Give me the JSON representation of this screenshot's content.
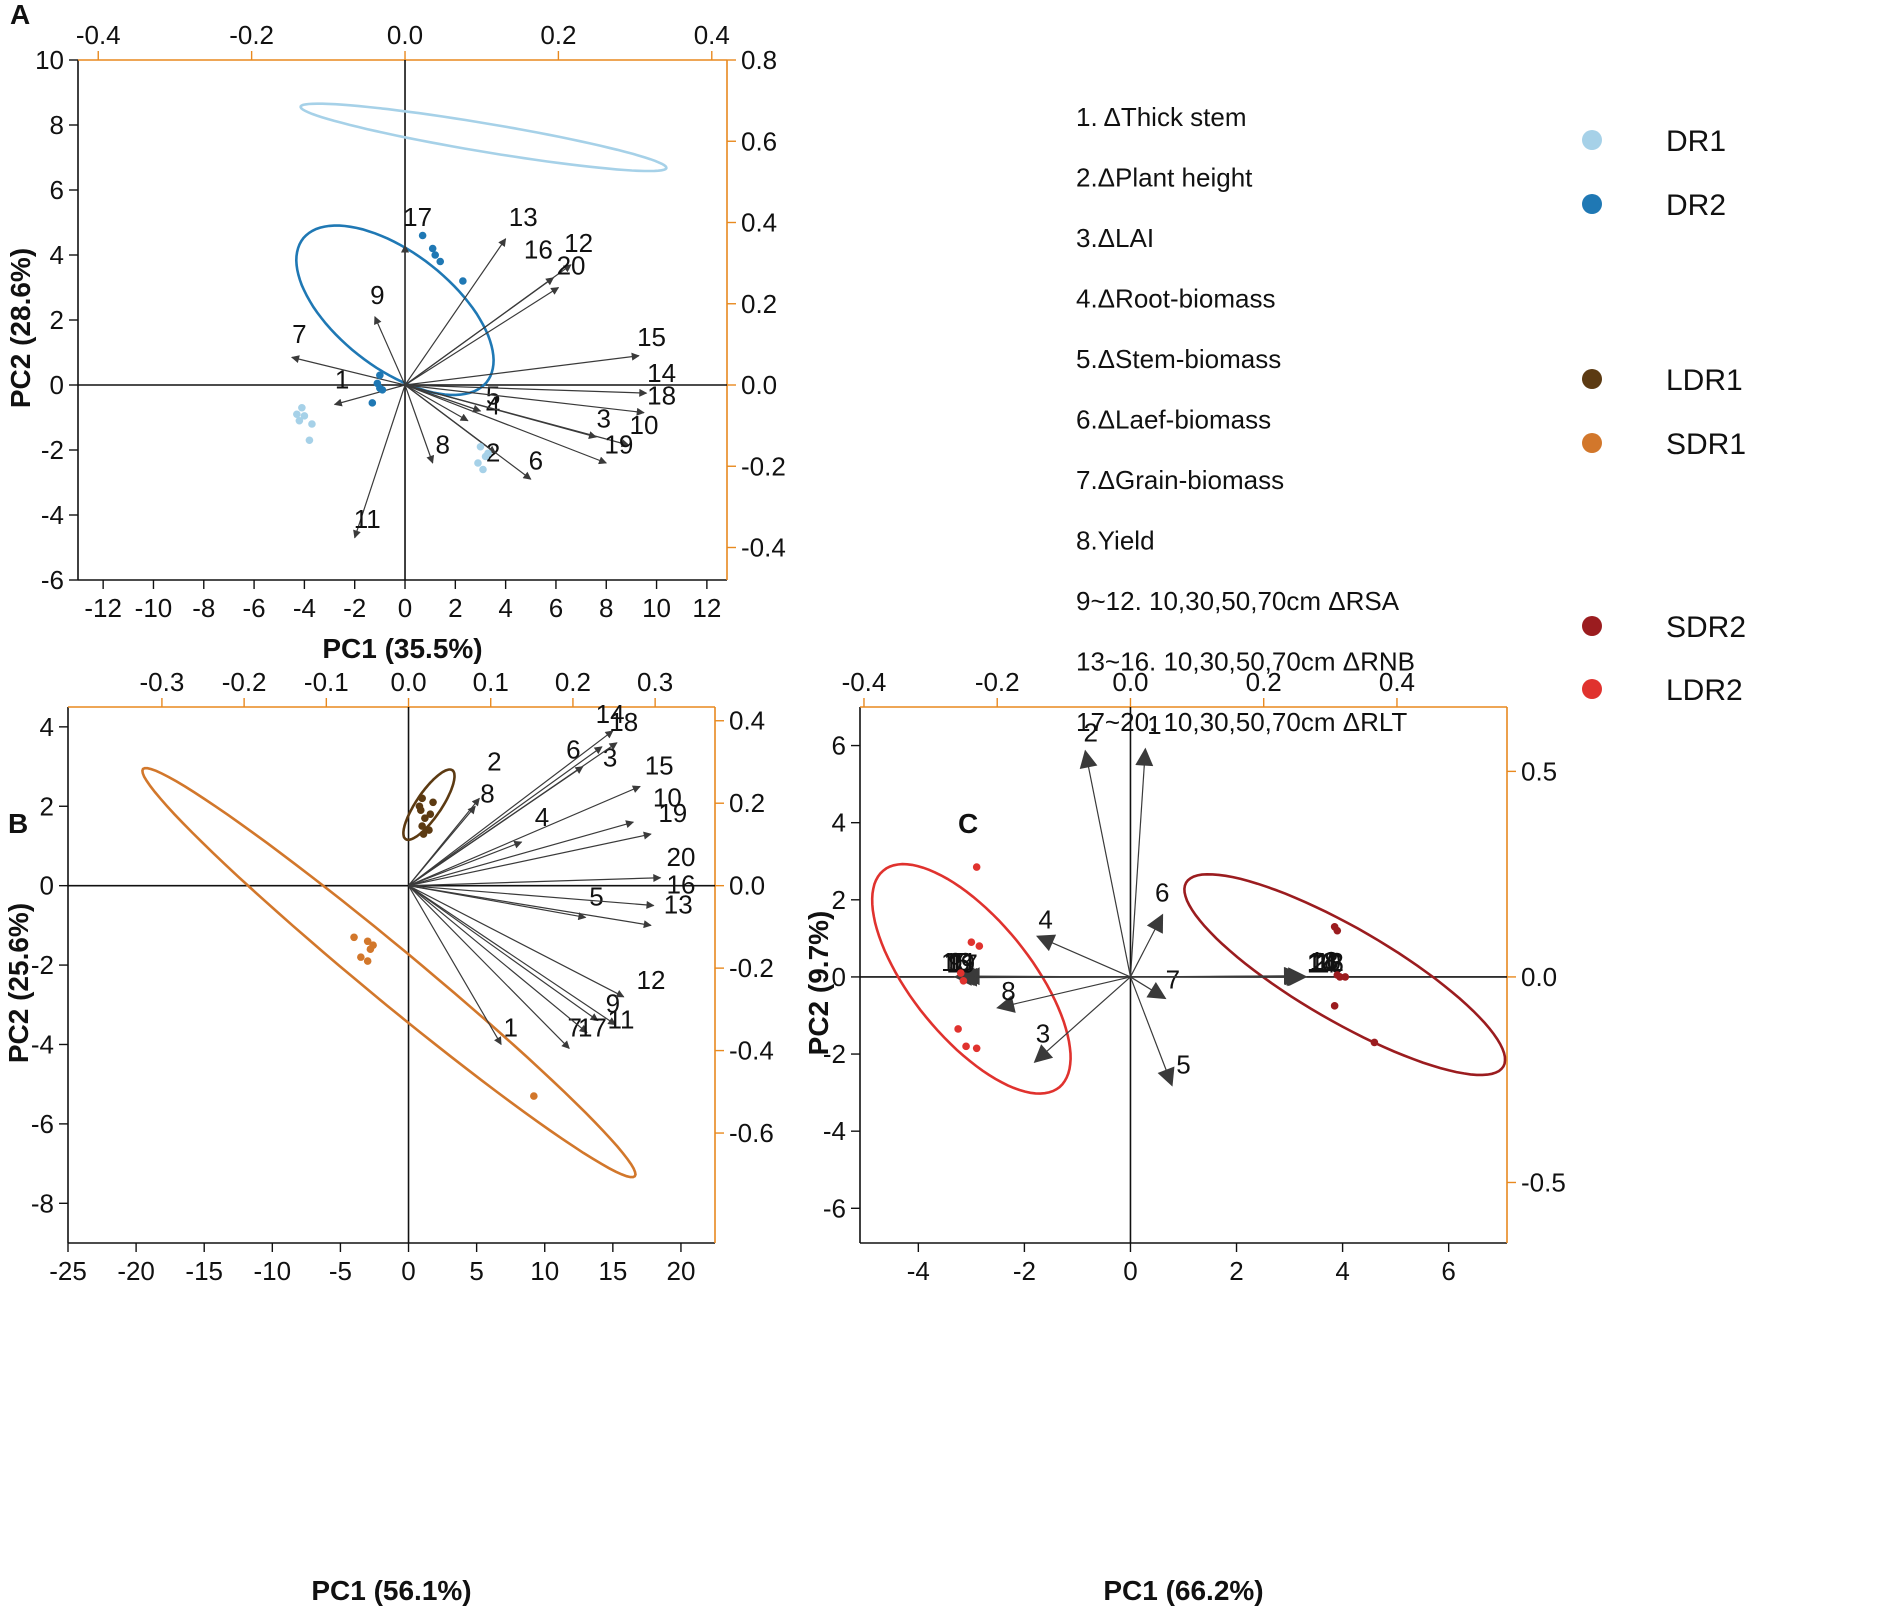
{
  "figure": {
    "title": "",
    "axis_color": "#E8891F",
    "arrow_color": "#3a3a3a",
    "legend_items": [
      {
        "text": "1. ΔThick stem"
      },
      {
        "text": "2.ΔPlant height"
      },
      {
        "text": "3.ΔLAI"
      },
      {
        "text": "4.ΔRoot-biomass"
      },
      {
        "text": "5.ΔStem-biomass"
      },
      {
        "text": "6.ΔLaef-biomass"
      },
      {
        "text": "7.ΔGrain-biomass"
      },
      {
        "text": "8.Yield"
      },
      {
        "text": "9~12. 10,30,50,70cm ΔRSA"
      },
      {
        "text": "13~16. 10,30,50,70cm ΔRNB"
      },
      {
        "text": "17~20. 10,30,50,70cm ΔRLT"
      }
    ],
    "group_legend": [
      {
        "name": "DR1",
        "color": "#A6D1E8"
      },
      {
        "name": "DR2",
        "color": "#1F78B4"
      },
      {
        "name": "LDR1",
        "color": "#5C3A12"
      },
      {
        "name": "SDR1",
        "color": "#D2772B"
      },
      {
        "name": "SDR2",
        "color": "#9B1C1F"
      },
      {
        "name": "LDR2",
        "color": "#E0322E"
      }
    ]
  },
  "chart_data": [
    {
      "panel": "A",
      "type": "scatter",
      "title": "",
      "xlabel": "PC1 (35.5%)",
      "ylabel": "PC2 (28.6%)",
      "xlim": [
        -13.0,
        12.8
      ],
      "ylim": [
        -6,
        10
      ],
      "xticks": [
        -12,
        -10,
        -8,
        -6,
        -4,
        -2,
        0,
        2,
        4,
        6,
        8,
        10,
        12
      ],
      "yticks": [
        -6,
        -4,
        -2,
        0,
        2,
        4,
        6,
        8,
        10
      ],
      "top_ticks": [
        -0.4,
        -0.2,
        0.0,
        0.2,
        0.4
      ],
      "top_scale": 0.0328,
      "right_ticks": [
        -0.4,
        -0.2,
        0.0,
        0.2,
        0.4,
        0.6,
        0.8
      ],
      "right_scale": 0.08,
      "loadings": [
        {
          "label": "1",
          "x": -2.8,
          "y": -0.6,
          "lx": -2.5,
          "ly": -0.1
        },
        {
          "label": "2",
          "x": 3.6,
          "y": -2.1,
          "lx": 3.5,
          "ly": -2.35
        },
        {
          "label": "3",
          "x": 7.6,
          "y": -1.6,
          "lx": 7.9,
          "ly": -1.3
        },
        {
          "label": "4",
          "x": 2.5,
          "y": -1.1,
          "lx": 3.5,
          "ly": -0.9
        },
        {
          "label": "5",
          "x": 3.0,
          "y": -0.8,
          "lx": 3.5,
          "ly": -0.6
        },
        {
          "label": "6",
          "x": 5.0,
          "y": -2.9,
          "lx": 5.2,
          "ly": -2.6
        },
        {
          "label": "7",
          "x": -4.5,
          "y": 0.85,
          "lx": -4.2,
          "ly": 1.3
        },
        {
          "label": "8",
          "x": 1.1,
          "y": -2.4,
          "lx": 1.5,
          "ly": -2.1
        },
        {
          "label": "9",
          "x": -1.2,
          "y": 2.1,
          "lx": -1.1,
          "ly": 2.5
        },
        {
          "label": "10",
          "x": 8.9,
          "y": -1.85,
          "lx": 9.5,
          "ly": -1.5
        },
        {
          "label": "11",
          "x": -2.0,
          "y": -4.7,
          "lx": -1.5,
          "ly": -4.4
        },
        {
          "label": "12",
          "x": 6.6,
          "y": 3.7,
          "lx": 6.9,
          "ly": 4.1
        },
        {
          "label": "13",
          "x": 4.0,
          "y": 4.5,
          "lx": 4.7,
          "ly": 4.9
        },
        {
          "label": "14",
          "x": 9.6,
          "y": -0.25,
          "lx": 10.2,
          "ly": 0.1
        },
        {
          "label": "15",
          "x": 9.3,
          "y": 0.9,
          "lx": 9.8,
          "ly": 1.2
        },
        {
          "label": "16",
          "x": 5.9,
          "y": 3.3,
          "lx": 5.3,
          "ly": 3.9
        },
        {
          "label": "17",
          "x": 0.0,
          "y": 4.3,
          "lx": 0.5,
          "ly": 4.9
        },
        {
          "label": "18",
          "x": 9.5,
          "y": -0.85,
          "lx": 10.2,
          "ly": -0.6
        },
        {
          "label": "19",
          "x": 8.0,
          "y": -2.4,
          "lx": 8.5,
          "ly": -2.1
        },
        {
          "label": "20",
          "x": 6.1,
          "y": 3.0,
          "lx": 6.6,
          "ly": 3.4
        }
      ],
      "series": [
        {
          "name": "DR1",
          "color": "#A6D1E8",
          "points": [
            [
              -4.1,
              -0.7
            ],
            [
              -4.3,
              -0.9
            ],
            [
              -4.2,
              -1.1
            ],
            [
              -3.7,
              -1.2
            ],
            [
              -3.8,
              -1.7
            ],
            [
              -4.0,
              -0.95
            ],
            [
              3.0,
              -1.9
            ],
            [
              3.2,
              -2.2
            ],
            [
              2.9,
              -2.4
            ],
            [
              3.1,
              -2.6
            ],
            [
              3.3,
              -2.1
            ]
          ],
          "ellipse": {
            "x0": 3.12,
            "y0": 7.62,
            "x1": -6.81,
            "y1": 1.66,
            "x2": -12.85,
            "y2": 1.24
          }
        },
        {
          "name": "DR2",
          "color": "#1F78B4",
          "points": [
            [
              0.7,
              4.6
            ],
            [
              1.1,
              4.2
            ],
            [
              1.2,
              4.0
            ],
            [
              1.4,
              3.8
            ],
            [
              2.3,
              3.2
            ],
            [
              -1.0,
              0.3
            ],
            [
              -1.0,
              -0.1
            ],
            [
              -1.3,
              -0.55
            ],
            [
              -1.1,
              0.05
            ],
            [
              -0.9,
              -0.15
            ]
          ],
          "ellipse": {
            "x0": -0.4,
            "y0": 2.3,
            "x1": 7.82,
            "y1": -2.78,
            "x2": 0.58,
            "y2": -4.41
          }
        }
      ]
    },
    {
      "panel": "B",
      "type": "scatter",
      "title": "",
      "xlabel": "PC1 (56.1%)",
      "ylabel": "PC2 (25.6%)",
      "xlim": [
        -25,
        22.5
      ],
      "ylim": [
        -9,
        4.5
      ],
      "xticks": [
        -25,
        -20,
        -15,
        -10,
        -5,
        0,
        5,
        10,
        15,
        20
      ],
      "yticks": [
        -8,
        -6,
        -4,
        -2,
        0,
        2,
        4
      ],
      "top_ticks": [
        -0.3,
        -0.2,
        -0.1,
        0.0,
        0.1,
        0.2,
        0.3
      ],
      "top_scale": 0.01657,
      "right_ticks": [
        -0.6,
        -0.4,
        -0.2,
        0.0,
        0.2,
        0.4
      ],
      "right_scale": 0.0963,
      "loadings": [
        {
          "label": "1",
          "x": 6.8,
          "y": -4.0,
          "lx": 7.5,
          "ly": -3.8
        },
        {
          "label": "2",
          "x": 5.2,
          "y": 2.2,
          "lx": 6.3,
          "ly": 2.9
        },
        {
          "label": "3",
          "x": 14.2,
          "y": 3.5,
          "lx": 14.8,
          "ly": 3.0
        },
        {
          "label": "4",
          "x": 8.3,
          "y": 1.1,
          "lx": 9.8,
          "ly": 1.5
        },
        {
          "label": "5",
          "x": 13.0,
          "y": -0.8,
          "lx": 13.8,
          "ly": -0.5
        },
        {
          "label": "6",
          "x": 12.8,
          "y": 3.0,
          "lx": 12.1,
          "ly": 3.2
        },
        {
          "label": "7",
          "x": 11.8,
          "y": -4.1,
          "lx": 12.2,
          "ly": -3.8
        },
        {
          "label": "8",
          "x": 4.9,
          "y": 2.0,
          "lx": 5.8,
          "ly": 2.1
        },
        {
          "label": "9",
          "x": 13.9,
          "y": -3.4,
          "lx": 15.0,
          "ly": -3.2
        },
        {
          "label": "10",
          "x": 16.5,
          "y": 1.6,
          "lx": 19.0,
          "ly": 2.0
        },
        {
          "label": "11",
          "x": 15.2,
          "y": -3.5,
          "lx": 15.6,
          "ly": -3.6
        },
        {
          "label": "12",
          "x": 15.8,
          "y": -2.8,
          "lx": 17.8,
          "ly": -2.6
        },
        {
          "label": "13",
          "x": 17.8,
          "y": -1.0,
          "lx": 19.8,
          "ly": -0.7
        },
        {
          "label": "14",
          "x": 15.3,
          "y": 3.6,
          "lx": 14.8,
          "ly": 4.1
        },
        {
          "label": "15",
          "x": 17.0,
          "y": 2.5,
          "lx": 18.4,
          "ly": 2.8
        },
        {
          "label": "16",
          "x": 18.0,
          "y": -0.5,
          "lx": 20.0,
          "ly": -0.2
        },
        {
          "label": "17",
          "x": 13.1,
          "y": -3.7,
          "lx": 13.5,
          "ly": -3.8
        },
        {
          "label": "18",
          "x": 15.0,
          "y": 3.9,
          "lx": 15.8,
          "ly": 3.9
        },
        {
          "label": "19",
          "x": 17.8,
          "y": 1.3,
          "lx": 19.4,
          "ly": 1.6
        },
        {
          "label": "20",
          "x": 18.5,
          "y": 0.2,
          "lx": 20.0,
          "ly": 0.5
        }
      ],
      "series": [
        {
          "name": "LDR1",
          "color": "#5C3A12",
          "points": [
            [
              1.0,
              2.2
            ],
            [
              1.8,
              2.1
            ],
            [
              0.9,
              1.9
            ],
            [
              1.6,
              1.8
            ],
            [
              1.2,
              1.7
            ],
            [
              1.0,
              1.5
            ],
            [
              1.5,
              1.4
            ],
            [
              1.1,
              1.3
            ],
            [
              0.8,
              2.0
            ]
          ],
          "ellipse": {
            "x0": 1.5,
            "y0": 2.04,
            "x1": 3.45,
            "y1": 1.73,
            "x2": 1.48,
            "y2": -0.38
          }
        },
        {
          "name": "SDR1",
          "color": "#D2772B",
          "points": [
            [
              -4.0,
              -1.3
            ],
            [
              -3.0,
              -1.4
            ],
            [
              -3.5,
              -1.8
            ],
            [
              -2.8,
              -1.6
            ],
            [
              -3.0,
              -1.9
            ],
            [
              -2.6,
              -1.5
            ],
            [
              9.2,
              -5.3
            ]
          ],
          "ellipse": {
            "x0": -1.44,
            "y0": -2.19,
            "x1": 36.2,
            "y1": -10.17,
            "x2": -0.26,
            "y2": -1.66
          }
        }
      ]
    },
    {
      "panel": "C",
      "type": "scatter",
      "title": "",
      "xlabel": "PC1 (66.2%)",
      "ylabel": "PC2 (9.7%)",
      "xlim": [
        -5.1,
        7.1
      ],
      "ylim": [
        -6.9,
        7.0
      ],
      "xticks": [
        -4,
        -2,
        0,
        2,
        4,
        6
      ],
      "yticks": [
        -6,
        -4,
        -2,
        0,
        2,
        4,
        6
      ],
      "top_ticks": [
        -0.4,
        -0.2,
        0.0,
        0.2,
        0.4
      ],
      "top_scale": 0.0796,
      "right_ticks": [
        -0.5,
        0.0,
        0.5
      ],
      "right_scale": 0.0938,
      "loadings": [
        {
          "label": "1",
          "x": 0.28,
          "y": 5.9,
          "lx": 0.45,
          "ly": 6.3
        },
        {
          "label": "2",
          "x": -0.85,
          "y": 5.85,
          "lx": -0.75,
          "ly": 6.1
        },
        {
          "label": "3",
          "x": -1.8,
          "y": -2.2,
          "lx": -1.65,
          "ly": -1.7
        },
        {
          "label": "4",
          "x": -1.75,
          "y": 1.05,
          "lx": -1.6,
          "ly": 1.25
        },
        {
          "label": "5",
          "x": 0.78,
          "y": -2.8,
          "lx": 1.0,
          "ly": -2.5
        },
        {
          "label": "6",
          "x": 0.6,
          "y": 1.6,
          "lx": 0.6,
          "ly": 1.95
        },
        {
          "label": "7",
          "x": 0.65,
          "y": -0.55,
          "lx": 0.8,
          "ly": -0.3
        },
        {
          "label": "8",
          "x": -2.5,
          "y": -0.8,
          "lx": -2.3,
          "ly": -0.6
        },
        {
          "label": "9",
          "x": -3.3,
          "y": 0.0,
          "lx": -3.3,
          "ly": 0.15
        },
        {
          "label": "10",
          "x": 3.25,
          "y": 0.0,
          "lx": 3.6,
          "ly": 0.15
        },
        {
          "label": "11",
          "x": -3.25,
          "y": 0.0,
          "lx": -3.15,
          "ly": 0.15
        },
        {
          "label": "12",
          "x": 3.28,
          "y": 0.02,
          "lx": 3.75,
          "ly": 0.15
        },
        {
          "label": "13",
          "x": -3.2,
          "y": 0.0,
          "lx": -3.25,
          "ly": 0.15
        },
        {
          "label": "14",
          "x": 3.2,
          "y": 0.03,
          "lx": 3.6,
          "ly": 0.12
        },
        {
          "label": "15",
          "x": -3.15,
          "y": 0.02,
          "lx": -3.3,
          "ly": 0.15
        },
        {
          "label": "16",
          "x": 3.3,
          "y": 0.0,
          "lx": 3.75,
          "ly": 0.12
        },
        {
          "label": "17",
          "x": -3.2,
          "y": -0.02,
          "lx": -3.15,
          "ly": 0.12
        },
        {
          "label": "18",
          "x": 3.27,
          "y": -0.01,
          "lx": 3.65,
          "ly": 0.18
        },
        {
          "label": "19",
          "x": -3.25,
          "y": 0.01,
          "lx": -3.2,
          "ly": 0.12
        },
        {
          "label": "20",
          "x": 3.22,
          "y": 0.02,
          "lx": 3.7,
          "ly": 0.15
        }
      ],
      "series": [
        {
          "name": "SDR2",
          "color": "#9B1C1F",
          "points": [
            [
              3.85,
              1.3
            ],
            [
              3.9,
              1.2
            ],
            [
              3.95,
              0.0
            ],
            [
              4.05,
              0.0
            ],
            [
              3.85,
              -0.75
            ],
            [
              4.6,
              -1.7
            ],
            [
              3.9,
              0.05
            ]
          ],
          "ellipse": {
            "x0": 4.04,
            "y0": 0.06,
            "x1": 4.98,
            "y1": -5.2,
            "x2": 3.43,
            "y2": -0.23
          }
        },
        {
          "name": "LDR2",
          "color": "#E0322E",
          "points": [
            [
              -2.9,
              2.85
            ],
            [
              -3.0,
              0.9
            ],
            [
              -2.85,
              0.8
            ],
            [
              -3.15,
              -0.1
            ],
            [
              -3.25,
              -1.35
            ],
            [
              -3.1,
              -1.8
            ],
            [
              -2.9,
              -1.85
            ],
            [
              -3.2,
              0.1
            ]
          ],
          "ellipse": {
            "x0": -3.0,
            "y0": -0.05,
            "x1": -2.6,
            "y1": 5.95,
            "x2": -2.69,
            "y2": -0.07
          }
        }
      ]
    }
  ]
}
